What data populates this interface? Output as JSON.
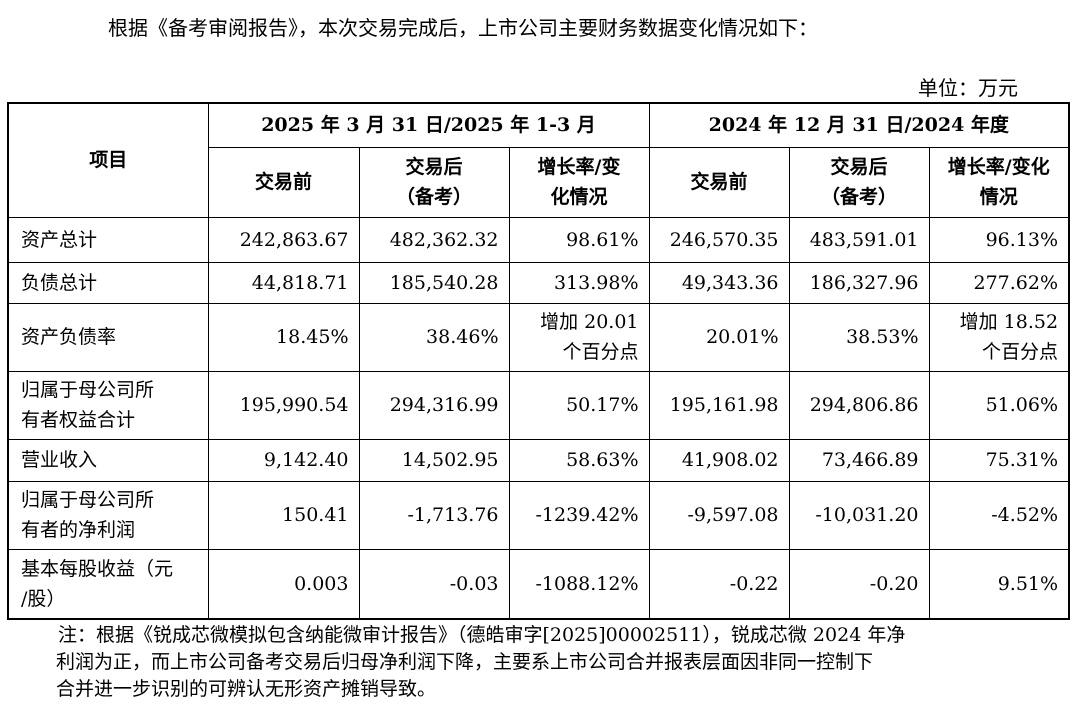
{
  "intro": "根据《备考审阅报告》，本次交易完成后，上市公司主要财务数据变化情况如下：",
  "unit": "单位：万元",
  "table": {
    "header": {
      "item": "项目",
      "periods": [
        "2025 年 3 月 31 日/2025 年 1-3 月",
        "2024 年 12 月 31 日/2024 年度"
      ],
      "columns": [
        "交易前",
        "交易后\n（备考）",
        "增长率/变\n化情况",
        "交易前",
        "交易后\n（备考）",
        "增长率/变化\n情况"
      ]
    },
    "rows": [
      [
        "资产总计",
        "242,863.67",
        "482,362.32",
        "98.61%",
        "246,570.35",
        "483,591.01",
        "96.13%"
      ],
      [
        "负债总计",
        "44,818.71",
        "185,540.28",
        "313.98%",
        "49,343.36",
        "186,327.96",
        "277.62%"
      ],
      [
        "资产负债率",
        "18.45%",
        "38.46%",
        "增加 20.01\n个百分点",
        "20.01%",
        "38.53%",
        "增加 18.52\n个百分点"
      ],
      [
        "归属于母公司所\n有者权益合计",
        "195,990.54",
        "294,316.99",
        "50.17%",
        "195,161.98",
        "294,806.86",
        "51.06%"
      ],
      [
        "营业收入",
        "9,142.40",
        "14,502.95",
        "58.63%",
        "41,908.02",
        "73,466.89",
        "75.31%"
      ],
      [
        "归属于母公司所\n有者的净利润",
        "150.41",
        "-1,713.76",
        "-1239.42%",
        "-9,597.08",
        "-10,031.20",
        "-4.52%"
      ],
      [
        "基本每股收益（元\n/股）",
        "0.003",
        "-0.03",
        "-1088.12%",
        "-0.22",
        "-0.20",
        "9.51%"
      ]
    ]
  },
  "note": {
    "lines": [
      "注：根据《锐成芯微模拟包含纳能微审计报告》（德皓审字[2025]00002511），锐成芯微 2024 年净",
      "利润为正，而上市公司备考交易后归母净利润下降，主要系上市公司合并报表层面因非同一控制下",
      "合并进一步识别的可辨认无形资产摊销导致。"
    ]
  }
}
